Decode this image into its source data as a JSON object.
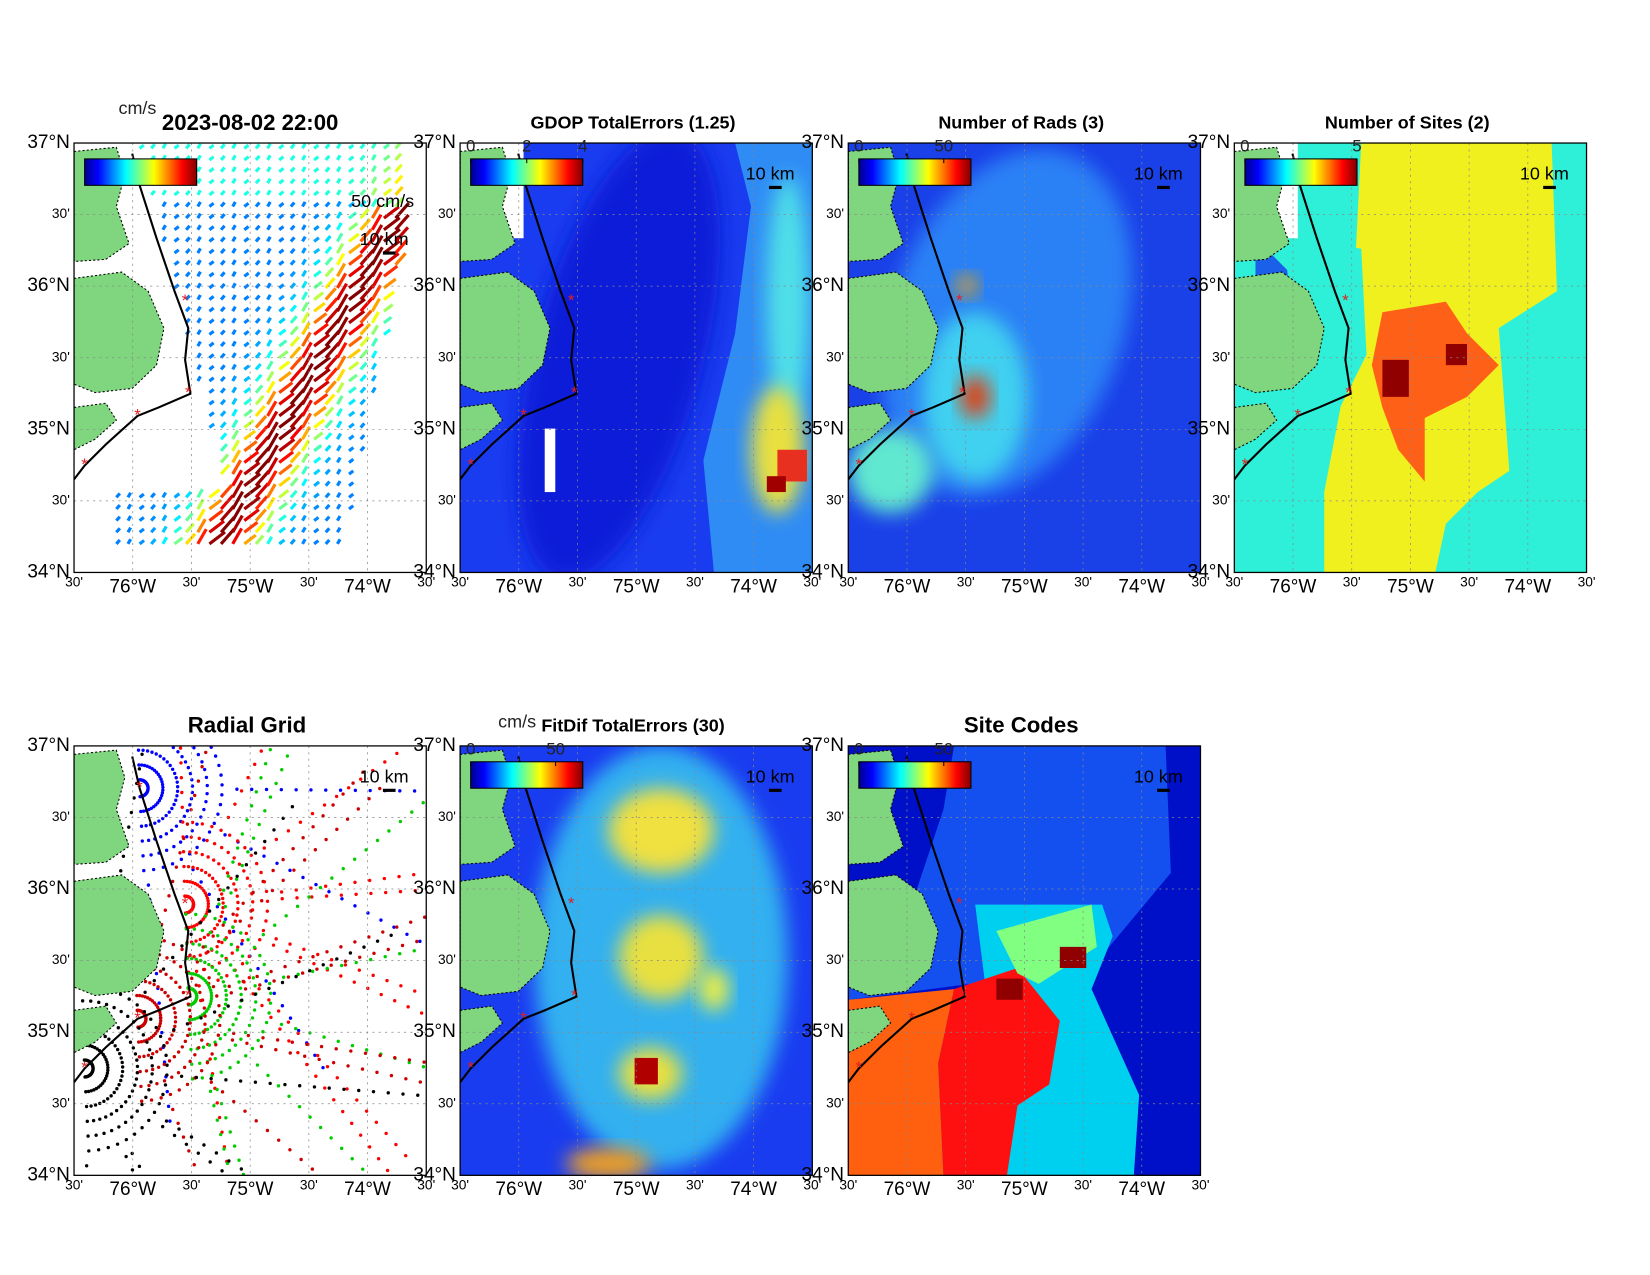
{
  "lat_labels": [
    "37°N",
    "30'",
    "36°N",
    "30'",
    "35°N",
    "30'",
    "34°N"
  ],
  "lon_labels": [
    "30'",
    "76°W",
    "30'",
    "75°W",
    "30'",
    "74°W",
    "30'"
  ],
  "panels": [
    {
      "title": "2023-08-02 22:00",
      "units": "cm/s",
      "scale_speed": "50 cm/s",
      "scale": "10 km"
    },
    {
      "title": "GDOP TotalErrors (1.25)",
      "colorbar_ticks": [
        0,
        2,
        4
      ],
      "clim": [
        0,
        4
      ],
      "scale": "10 km"
    },
    {
      "title": "Number of Rads (3)",
      "colorbar_ticks": [
        0,
        50
      ],
      "clim": [
        0,
        66
      ],
      "scale": "10 km"
    },
    {
      "title": "Number of Sites (2)",
      "colorbar_ticks": [
        0,
        5
      ],
      "clim": [
        0,
        5
      ],
      "scale": "10 km"
    },
    {
      "title": "Radial Grid",
      "scale": "10 km"
    },
    {
      "title": "FitDif TotalErrors (30)",
      "units": "cm/s",
      "colorbar_ticks": [
        0,
        50
      ],
      "clim": [
        0,
        66
      ],
      "scale": "10 km"
    },
    {
      "title": "Site Codes",
      "colorbar_ticks": [
        0,
        50
      ],
      "clim": [
        0,
        66
      ],
      "scale": "10 km"
    }
  ]
}
